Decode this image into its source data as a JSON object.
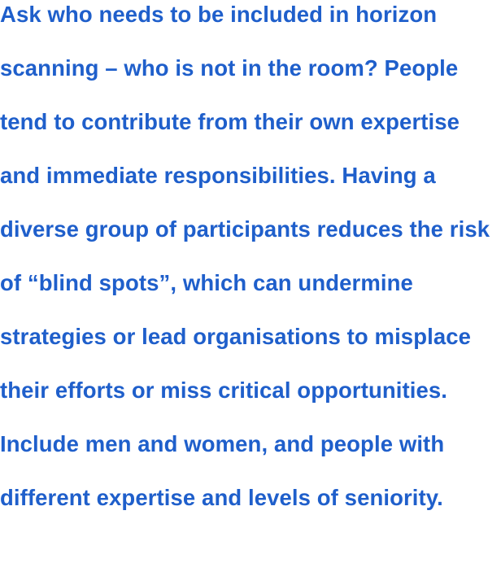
{
  "paragraph": {
    "lines": [
      "Ask who needs to be included in horizon",
      "scanning – who is not in the room? People",
      "tend to contribute from their own expertise",
      "and immediate responsibilities. Having a",
      "diverse group of participants reduces the risk",
      "of “blind spots”, which can undermine",
      "strategies or lead organisations to misplace",
      "their efforts or miss critical opportunities.",
      "Include men and women, and people with",
      "different expertise and levels of seniority."
    ]
  },
  "colors": {
    "text": "#1f5fcb",
    "background": "#ffffff"
  }
}
